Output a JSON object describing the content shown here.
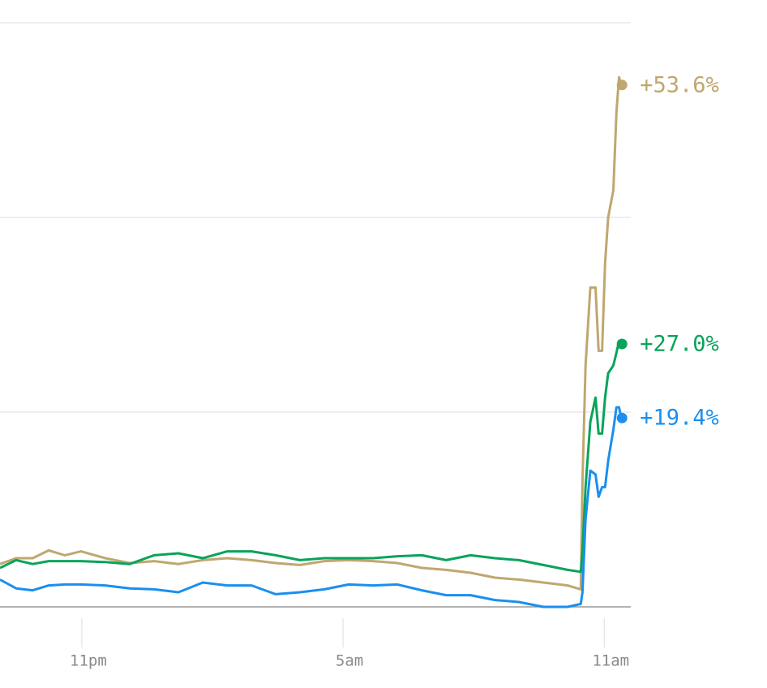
{
  "chart_data": {
    "type": "line",
    "x": [
      21.12,
      21.49,
      21.87,
      22.24,
      22.61,
      22.98,
      23.54,
      24.1,
      24.66,
      25.22,
      25.78,
      26.34,
      26.9,
      27.45,
      28.01,
      28.57,
      29.13,
      29.69,
      30.25,
      30.81,
      31.37,
      31.93,
      32.49,
      33.04,
      33.6,
      34.16,
      34.46,
      34.5,
      34.57,
      34.68,
      34.8,
      34.87,
      34.95,
      35.02,
      35.09,
      35.21,
      35.28,
      35.34,
      35.39
    ],
    "series": [
      {
        "color": "#bfa76f",
        "values": [
          4.4,
          5.0,
          5.0,
          5.8,
          5.3,
          5.7,
          5.0,
          4.5,
          4.7,
          4.4,
          4.8,
          5.0,
          4.8,
          4.5,
          4.3,
          4.7,
          4.8,
          4.7,
          4.5,
          4.0,
          3.8,
          3.5,
          3.0,
          2.8,
          2.5,
          2.2,
          1.8,
          12.8,
          24.8,
          32.8,
          32.8,
          26.3,
          26.3,
          35.3,
          40.0,
          42.8,
          50.8,
          54.4,
          53.6
        ],
        "value_labels": [
          null,
          null,
          null,
          null,
          null,
          null,
          null,
          null,
          null,
          null,
          null,
          null,
          null,
          null,
          null,
          null,
          null,
          null,
          null,
          null,
          null,
          null,
          null,
          null,
          null,
          null,
          null,
          null,
          null,
          null,
          null,
          null,
          null,
          null,
          null,
          null,
          null,
          null,
          "+53.6%"
        ]
      },
      {
        "color": "#0aa35a",
        "values": [
          4.0,
          4.8,
          4.4,
          4.7,
          4.7,
          4.7,
          4.6,
          4.4,
          5.3,
          5.5,
          5.0,
          5.7,
          5.7,
          5.3,
          4.8,
          5.0,
          5.0,
          5.0,
          5.2,
          5.3,
          4.8,
          5.3,
          5.0,
          4.8,
          4.3,
          3.8,
          3.6,
          5.7,
          12.3,
          19.0,
          21.5,
          17.8,
          17.8,
          21.5,
          24.0,
          24.8,
          26.1,
          27.3,
          27.0
        ],
        "value_labels": [
          null,
          null,
          null,
          null,
          null,
          null,
          null,
          null,
          null,
          null,
          null,
          null,
          null,
          null,
          null,
          null,
          null,
          null,
          null,
          null,
          null,
          null,
          null,
          null,
          null,
          null,
          null,
          null,
          null,
          null,
          null,
          null,
          null,
          null,
          null,
          null,
          null,
          null,
          "+27.0%"
        ]
      },
      {
        "color": "#1a8fef",
        "values": [
          2.8,
          1.9,
          1.7,
          2.2,
          2.3,
          2.3,
          2.2,
          1.9,
          1.8,
          1.5,
          2.5,
          2.2,
          2.2,
          1.3,
          1.5,
          1.8,
          2.3,
          2.2,
          2.3,
          1.7,
          1.2,
          1.2,
          0.7,
          0.5,
          0.0,
          0.0,
          0.3,
          1.5,
          9.0,
          14.0,
          13.6,
          11.3,
          12.3,
          12.3,
          15.0,
          18.2,
          20.5,
          20.5,
          19.4
        ],
        "value_labels": [
          null,
          null,
          null,
          null,
          null,
          null,
          null,
          null,
          null,
          null,
          null,
          null,
          null,
          null,
          null,
          null,
          null,
          null,
          null,
          null,
          null,
          null,
          null,
          null,
          null,
          null,
          null,
          null,
          null,
          null,
          null,
          null,
          null,
          null,
          null,
          null,
          null,
          null,
          "+19.4%"
        ]
      }
    ],
    "xlim": [
      21.12,
      35.61
    ],
    "xticks": [
      {
        "value": 23,
        "label": "11pm"
      },
      {
        "value": 29,
        "label": "5am"
      },
      {
        "value": 35,
        "label": "11am"
      }
    ],
    "ylim": [
      0,
      60
    ],
    "yticks": [
      0,
      20,
      40,
      60
    ],
    "grid": true
  }
}
